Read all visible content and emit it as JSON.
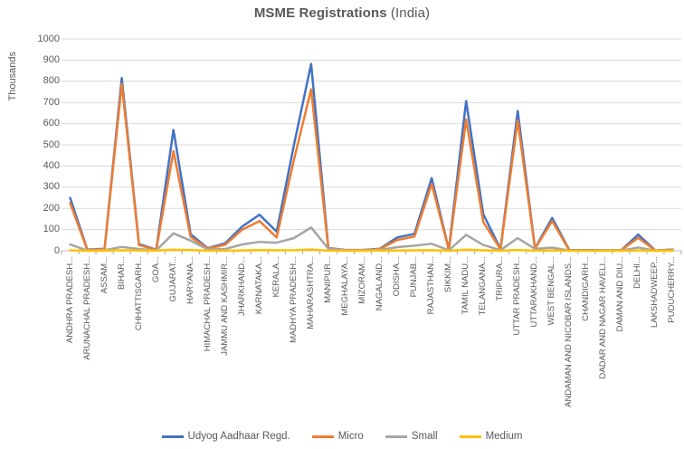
{
  "title": {
    "main": "MSME Registrations",
    "suffix": " (India)"
  },
  "y_axis": {
    "label": "Thousands"
  },
  "colors": {
    "grid": "#D9D9D9",
    "axis_line": "#BFBFBF",
    "tick": "#A6A6A6",
    "text": "#595959",
    "series_blue": "#4472C4",
    "series_orange": "#ED7D31",
    "series_gray": "#A5A5A5",
    "series_yellow": "#FFC000"
  },
  "legend": {
    "items": [
      "Udyog Aadhaar Regd.",
      "Micro",
      "Small",
      "Medium"
    ]
  },
  "chart_data": {
    "type": "line",
    "title": "MSME Registrations (India)",
    "xlabel": "",
    "ylabel": "Thousands",
    "ylim": [
      0,
      1000
    ],
    "y_ticks": [
      0,
      100,
      200,
      300,
      400,
      500,
      600,
      700,
      800,
      900,
      1000
    ],
    "grid": true,
    "legend_position": "bottom",
    "units": "thousands",
    "categories": [
      "ANDHRA PRADESH...",
      "ARUNACHAL PRADESH...",
      "ASSAM...",
      "BIHAR...",
      "CHHATTISGARH...",
      "GOA...",
      "GUJARAT...",
      "HARYANA...",
      "HIMACHAL PRADESH...",
      "JAMMU AND KASHMIR...",
      "JHARKHAND...",
      "KARNATAKA...",
      "KERALA...",
      "MADHYA PRADESH...",
      "MAHARASHTRA...",
      "MANIPUR...",
      "MEGHALAYA...",
      "MIZORAM...",
      "NAGALAND...",
      "ODISHA...",
      "PUNJAB...",
      "RAJASTHAN...",
      "SIKKIM...",
      "TAMIL NADU...",
      "TELANGANA...",
      "TRIPURA...",
      "UTTAR PRADESH...",
      "UTTARAKHAND...",
      "WEST BENGAL...",
      "ANDAMAN AND NICOBAR ISLANDS...",
      "CHANDIGARH...",
      "DADAR AND NAGAR HAVELI...",
      "DAMAN AND DIU...",
      "DELHI...",
      "LAKSHADWEEP...",
      "PUDUCHERRY..."
    ],
    "series": [
      {
        "name": "Udyog Aadhaar Regd.",
        "color": "#4472C4",
        "values": [
          250,
          5,
          10,
          815,
          32,
          5,
          570,
          78,
          12,
          35,
          115,
          170,
          90,
          500,
          882,
          13,
          4,
          4,
          10,
          63,
          80,
          343,
          5,
          707,
          172,
          8,
          660,
          12,
          155,
          3,
          3,
          2,
          2,
          76,
          1,
          6
        ]
      },
      {
        "name": "Micro",
        "color": "#ED7D31",
        "values": [
          225,
          4,
          8,
          788,
          27,
          4,
          470,
          65,
          10,
          28,
          100,
          140,
          63,
          430,
          762,
          11,
          3,
          3,
          8,
          51,
          67,
          315,
          4,
          620,
          135,
          7,
          615,
          10,
          140,
          2,
          2,
          2,
          2,
          61,
          1,
          5
        ]
      },
      {
        "name": "Small",
        "color": "#A5A5A5",
        "values": [
          30,
          1,
          3,
          18,
          8,
          2,
          82,
          48,
          6,
          8,
          30,
          42,
          38,
          60,
          110,
          10,
          2,
          2,
          4,
          17,
          24,
          33,
          2,
          75,
          27,
          3,
          60,
          9,
          15,
          1,
          1,
          1,
          1,
          15,
          0.3,
          2
        ]
      },
      {
        "name": "Medium",
        "color": "#FFC000",
        "values": [
          2,
          0.2,
          0.3,
          2,
          1,
          0.3,
          5,
          3,
          0.5,
          0.5,
          1.5,
          3,
          2,
          2.5,
          6,
          0.3,
          0.2,
          0.2,
          0.3,
          1,
          2,
          2.5,
          0.2,
          5,
          2,
          0.2,
          4,
          0.5,
          1.5,
          0.1,
          0.1,
          0.1,
          0.1,
          1,
          0.1,
          0.2
        ]
      }
    ]
  }
}
